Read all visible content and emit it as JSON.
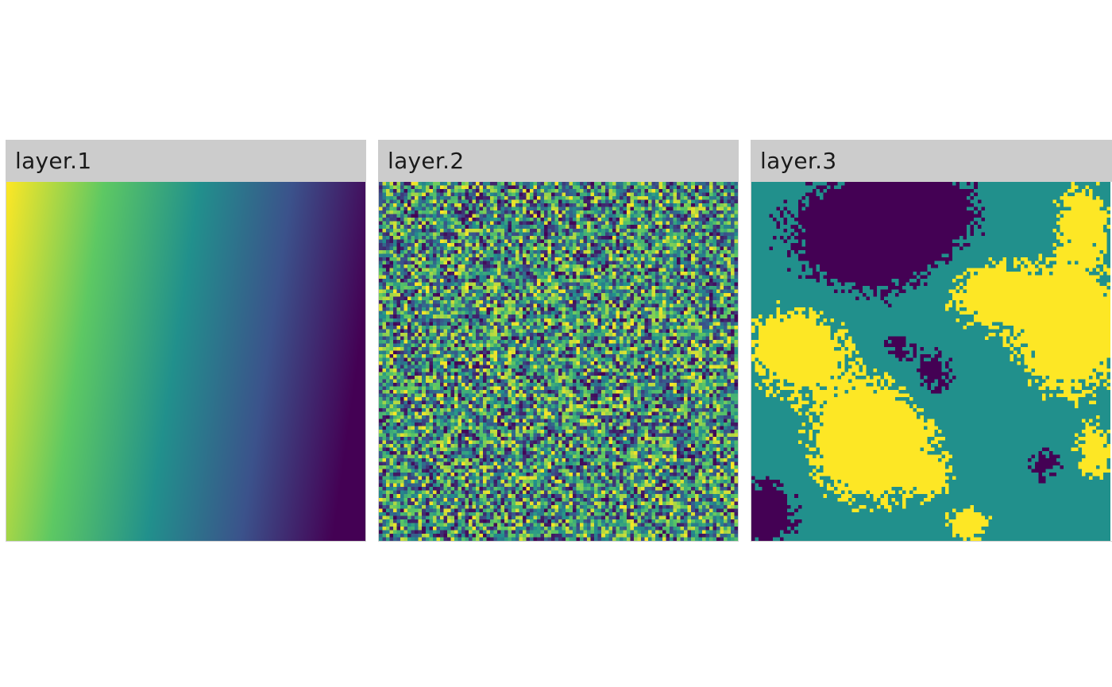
{
  "chart_data": [
    {
      "type": "heatmap",
      "title": "layer.1",
      "description": "smooth gradient from high values (yellow, left) to low values (purple, right)",
      "colormap": [
        "#440154",
        "#3b528b",
        "#21908c",
        "#5dc863",
        "#fde725"
      ],
      "grid": false
    },
    {
      "type": "heatmap",
      "title": "layer.2",
      "description": "uniform random noise, 100x100 cells",
      "colormap": [
        "#440154",
        "#3b528b",
        "#21908c",
        "#5dc863",
        "#fde725"
      ],
      "grid": false
    },
    {
      "type": "heatmap",
      "title": "layer.3",
      "description": "three discrete classes forming spatially clustered patches",
      "classes": 3,
      "class_colors": [
        "#440154",
        "#21908c",
        "#fde725"
      ],
      "grid": false
    }
  ]
}
